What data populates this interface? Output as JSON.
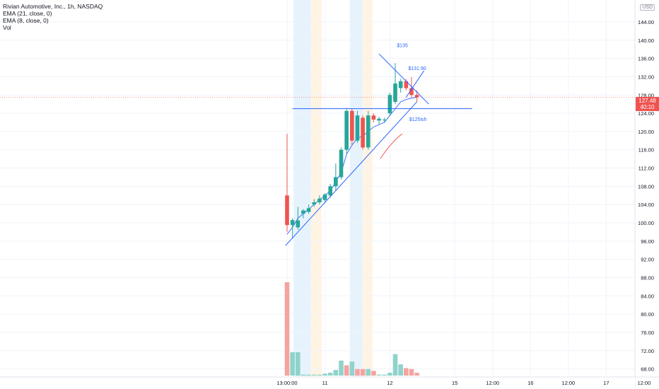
{
  "legend": {
    "symbol": "Rivian Automotive, Inc., 1h, NASDAQ",
    "ema21": "EMA (21, close, 0)",
    "ema8": "EMA (8, close, 0)",
    "vol": "Vol"
  },
  "currency": "USD",
  "last_price": {
    "value": "127.48",
    "countdown": "40:10"
  },
  "colors": {
    "up": "#26a69a",
    "down": "#ef5350",
    "vol_up": "#8fd3cb",
    "vol_down": "#f5a3a1",
    "drawing": "#2962ff",
    "annotation_red": "#ef5350"
  },
  "chart_data": {
    "type": "candlestick",
    "title": "Rivian Automotive, Inc., 1h, NASDAQ",
    "y_ticks": [
      68,
      72,
      76,
      80,
      84,
      88,
      92,
      96,
      100,
      104,
      108,
      112,
      116,
      120,
      124,
      128,
      132,
      136,
      140,
      144
    ],
    "y_tick_labels": [
      "68.00",
      "72.00",
      "76.00",
      "80.00",
      "84.00",
      "88.00",
      "92.00",
      "96.00",
      "100.00",
      "104.00",
      "108.00",
      "112.00",
      "116.00",
      "120.00",
      "124.00",
      "128.00",
      "132.00",
      "136.00",
      "140.00",
      "144.00"
    ],
    "ylim": [
      63.6,
      148.8
    ],
    "x_ticks": [
      {
        "label": "13:00:00",
        "index": 0
      },
      {
        "label": "11",
        "index": 7
      },
      {
        "label": "12",
        "index": 19
      },
      {
        "label": "15",
        "index": 31
      },
      {
        "label": "12:00",
        "index": 38
      },
      {
        "label": "16",
        "index": 45
      },
      {
        "label": "12:00",
        "index": 52
      },
      {
        "label": "17",
        "index": 59
      },
      {
        "label": "12:00",
        "index": 66
      }
    ],
    "candles": [
      {
        "o": 106.0,
        "h": 119.5,
        "l": 98.0,
        "c": 99.5
      },
      {
        "o": 99.5,
        "h": 101.0,
        "l": 96.5,
        "c": 100.6
      },
      {
        "o": 99.0,
        "h": 103.5,
        "l": 98.5,
        "c": 100.5
      },
      {
        "o": 102.0,
        "h": 103.0,
        "l": 101.0,
        "c": 102.7
      },
      {
        "o": 102.4,
        "h": 104.0,
        "l": 102.0,
        "c": 103.2
      },
      {
        "o": 104.0,
        "h": 105.2,
        "l": 103.5,
        "c": 104.5
      },
      {
        "o": 104.5,
        "h": 106.0,
        "l": 104.0,
        "c": 105.3
      },
      {
        "o": 105.0,
        "h": 106.5,
        "l": 104.5,
        "c": 106.2
      },
      {
        "o": 106.0,
        "h": 108.5,
        "l": 105.5,
        "c": 108.0
      },
      {
        "o": 108.0,
        "h": 113.0,
        "l": 107.0,
        "c": 110.0
      },
      {
        "o": 110.0,
        "h": 116.5,
        "l": 109.5,
        "c": 116.0
      },
      {
        "o": 116.0,
        "h": 125.0,
        "l": 115.0,
        "c": 124.5
      },
      {
        "o": 124.5,
        "h": 125.0,
        "l": 117.0,
        "c": 118.0
      },
      {
        "o": 118.0,
        "h": 124.5,
        "l": 117.5,
        "c": 123.5
      },
      {
        "o": 123.0,
        "h": 123.5,
        "l": 116.0,
        "c": 116.5
      },
      {
        "o": 116.5,
        "h": 124.5,
        "l": 116.0,
        "c": 123.5
      },
      {
        "o": 123.5,
        "h": 124.0,
        "l": 122.0,
        "c": 122.6
      },
      {
        "o": 122.4,
        "h": 123.2,
        "l": 121.5,
        "c": 122.8
      },
      {
        "o": 122.5,
        "h": 123.0,
        "l": 122.0,
        "c": 122.6
      },
      {
        "o": 124.0,
        "h": 128.5,
        "l": 123.5,
        "c": 128.0
      },
      {
        "o": 126.5,
        "h": 135.0,
        "l": 126.0,
        "c": 130.5
      },
      {
        "o": 129.5,
        "h": 131.5,
        "l": 128.5,
        "c": 131.0
      },
      {
        "o": 131.0,
        "h": 131.5,
        "l": 129.0,
        "c": 129.5
      },
      {
        "o": 129.5,
        "h": 131.9,
        "l": 127.5,
        "c": 128.0
      },
      {
        "o": 128.0,
        "h": 129.0,
        "l": 126.5,
        "c": 127.5
      }
    ],
    "ema_line": [
      97.5,
      99,
      101,
      102,
      103,
      104,
      105,
      106,
      107,
      109,
      111,
      115,
      117,
      118.5,
      119,
      120,
      121,
      121.5,
      122,
      123.5,
      125,
      126.5,
      127,
      127.3,
      127.5
    ],
    "volume": [
      {
        "v": 100,
        "up": false
      },
      {
        "v": 25,
        "up": true
      },
      {
        "v": 25,
        "up": true
      },
      {
        "v": 1,
        "up": true
      },
      {
        "v": 1,
        "up": true
      },
      {
        "v": 1,
        "up": true
      },
      {
        "v": 1,
        "up": true
      },
      {
        "v": 2,
        "up": true
      },
      {
        "v": 3,
        "up": true
      },
      {
        "v": 6,
        "up": true
      },
      {
        "v": 16,
        "up": true
      },
      {
        "v": 11,
        "up": false
      },
      {
        "v": 15,
        "up": true
      },
      {
        "v": 7,
        "up": false
      },
      {
        "v": 7,
        "up": false
      },
      {
        "v": 7,
        "up": true
      },
      {
        "v": 5,
        "up": false
      },
      {
        "v": 1,
        "up": true
      },
      {
        "v": 1,
        "up": true
      },
      {
        "v": 3,
        "up": true
      },
      {
        "v": 23,
        "up": true
      },
      {
        "v": 12,
        "up": true
      },
      {
        "v": 8,
        "up": false
      },
      {
        "v": 7,
        "up": false
      },
      {
        "v": 3,
        "up": false
      }
    ],
    "sessions": [
      {
        "kind": "pre",
        "from": 1.2,
        "to": 4.4
      },
      {
        "kind": "post",
        "from": 4.4,
        "to": 6.4
      },
      {
        "kind": "pre",
        "from": 11.6,
        "to": 14.0
      },
      {
        "kind": "post",
        "from": 14.0,
        "to": 15.8
      }
    ],
    "annotations": [
      {
        "text": "$135",
        "index": 20.3,
        "y": 138.5
      },
      {
        "text": "$131.90",
        "index": 22.4,
        "y": 133.5
      },
      {
        "text": "$125ish",
        "index": 22.6,
        "y": 122.3
      }
    ],
    "drawings": [
      {
        "kind": "support-trendline",
        "from": [
          -0.3,
          95.0
        ],
        "to": [
          24.0,
          126.5
        ]
      },
      {
        "kind": "rising-trendline",
        "from": [
          22.0,
          127.5
        ],
        "to": [
          25.3,
          133.3
        ]
      },
      {
        "kind": "resistance-trendline",
        "from": [
          17.0,
          137.0
        ],
        "to": [
          26.2,
          126.0
        ]
      },
      {
        "kind": "horizontal-level",
        "from": [
          1.0,
          125.0
        ],
        "to": [
          34.2,
          125.0
        ]
      }
    ]
  }
}
